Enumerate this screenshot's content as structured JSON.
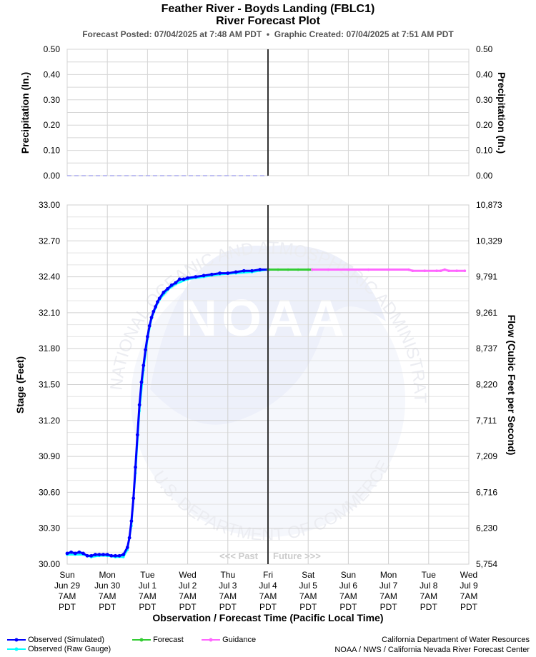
{
  "header": {
    "title": "Feather River - Boyds Landing (FBLC1)",
    "subtitle": "River Forecast Plot",
    "posted_label": "Forecast Posted: 07/04/2025 at 7:48 AM PDT",
    "separator": "•",
    "created_label": "Graphic Created: 07/04/2025 at 7:51 AM PDT"
  },
  "watermark": {
    "ring_top": "NATIONAL OCEANIC AND ATMOSPHERIC ADMINISTRATION",
    "ring_bottom": "U.S. DEPARTMENT OF COMMERCE",
    "logo": "NOAA"
  },
  "past_label": "<<< Past",
  "future_label": "Future >>>",
  "x_ticks": [
    [
      "Sun",
      "Jun 29",
      "7AM",
      "PDT"
    ],
    [
      "Mon",
      "Jun 30",
      "7AM",
      "PDT"
    ],
    [
      "Tue",
      "Jul 1",
      "7AM",
      "PDT"
    ],
    [
      "Wed",
      "Jul 2",
      "7AM",
      "PDT"
    ],
    [
      "Thu",
      "Jul 3",
      "7AM",
      "PDT"
    ],
    [
      "Fri",
      "Jul 4",
      "7AM",
      "PDT"
    ],
    [
      "Sat",
      "Jul 5",
      "7AM",
      "PDT"
    ],
    [
      "Sun",
      "Jul 6",
      "7AM",
      "PDT"
    ],
    [
      "Mon",
      "Jul 7",
      "7AM",
      "PDT"
    ],
    [
      "Tue",
      "Jul 8",
      "7AM",
      "PDT"
    ],
    [
      "Wed",
      "Jul 9",
      "7AM",
      "PDT"
    ]
  ],
  "legend": {
    "observed_simulated": "Observed (Simulated)",
    "observed_raw": "Observed (Raw Gauge)",
    "forecast": "Forecast",
    "guidance": "Guidance"
  },
  "credits": {
    "line1": "California Department of Water Resources",
    "line2": "NOAA / NWS / California Nevada River Forecast Center"
  },
  "colors": {
    "observed_simulated": "#0000ff",
    "observed_raw": "#00ffff",
    "forecast": "#33cc33",
    "guidance": "#ff66ff",
    "now_line": "#333333",
    "precip": "#aaaaee"
  },
  "chart_data": [
    {
      "type": "line",
      "panel": "precipitation",
      "ylabel_left": "Precipitation (In.)",
      "ylabel_right": "Precipitation (In.)",
      "ylim": [
        0,
        0.5
      ],
      "y_ticks": [
        "0.00",
        "0.10",
        "0.20",
        "0.30",
        "0.40",
        "0.50"
      ],
      "x_range_days": [
        0,
        10
      ],
      "series": [
        {
          "x": [
            0,
            5
          ],
          "values": [
            0,
            0
          ]
        }
      ]
    },
    {
      "type": "line",
      "panel": "stage",
      "xlabel": "Observation / Forecast Time (Pacific Local Time)",
      "ylabel_left": "Stage (Feet)",
      "ylabel_right": "Flow (Cubic Feet per Second)",
      "ylim": [
        30.0,
        33.0
      ],
      "y_ticks": [
        "30.00",
        "30.30",
        "30.60",
        "30.90",
        "31.20",
        "31.50",
        "31.80",
        "32.10",
        "32.40",
        "32.70",
        "33.00"
      ],
      "y_ticks_right": [
        "5,754",
        "6,230",
        "6,716",
        "7,209",
        "7,711",
        "8,220",
        "8,737",
        "9,261",
        "9,791",
        "10,329",
        "10,873"
      ],
      "x_range_days": [
        0,
        10
      ],
      "now_day": 5.0,
      "series": [
        {
          "name": "Observed (Simulated)",
          "x": [
            0.0,
            0.1,
            0.2,
            0.3,
            0.4,
            0.5,
            0.6,
            0.7,
            0.8,
            0.9,
            1.0,
            1.1,
            1.2,
            1.3,
            1.4,
            1.5,
            1.55,
            1.6,
            1.65,
            1.7,
            1.75,
            1.8,
            1.85,
            1.9,
            1.95,
            2.0,
            2.05,
            2.1,
            2.15,
            2.2,
            2.25,
            2.3,
            2.4,
            2.5,
            2.6,
            2.7,
            2.8,
            2.9,
            3.0,
            3.2,
            3.4,
            3.6,
            3.8,
            4.0,
            4.2,
            4.4,
            4.6,
            4.8,
            5.0
          ],
          "values": [
            30.09,
            30.1,
            30.09,
            30.1,
            30.09,
            30.07,
            30.07,
            30.08,
            30.08,
            30.08,
            30.08,
            30.07,
            30.07,
            30.07,
            30.08,
            30.14,
            30.22,
            30.36,
            30.55,
            30.81,
            31.08,
            31.33,
            31.52,
            31.66,
            31.79,
            31.9,
            31.99,
            32.06,
            32.11,
            32.15,
            32.19,
            32.22,
            32.27,
            32.3,
            32.33,
            32.35,
            32.38,
            32.38,
            32.39,
            32.4,
            32.41,
            32.42,
            32.43,
            32.43,
            32.44,
            32.45,
            32.45,
            32.46,
            32.46
          ]
        },
        {
          "name": "Observed (Raw Gauge)",
          "x": [
            0.0,
            0.2,
            0.4,
            0.6,
            0.8,
            1.0,
            1.2,
            1.4,
            1.5,
            1.6,
            1.7,
            1.8,
            1.9,
            2.0,
            2.1,
            2.2,
            2.3,
            2.5,
            2.7,
            3.0,
            3.4,
            3.8,
            4.2,
            4.6,
            5.0
          ],
          "values": [
            30.08,
            30.08,
            30.08,
            30.06,
            30.07,
            30.07,
            30.06,
            30.06,
            30.12,
            30.32,
            30.76,
            31.28,
            31.62,
            31.88,
            32.05,
            32.14,
            32.21,
            32.29,
            32.34,
            32.38,
            32.4,
            32.42,
            32.43,
            32.44,
            32.46
          ]
        },
        {
          "name": "Forecast",
          "x": [
            5.0,
            5.25,
            5.5,
            5.75,
            6.0,
            6.1
          ],
          "values": [
            32.46,
            32.46,
            32.46,
            32.46,
            32.46,
            32.46
          ]
        },
        {
          "name": "Guidance",
          "x": [
            6.1,
            6.5,
            7.0,
            7.5,
            8.0,
            8.5,
            8.6,
            8.9,
            9.2,
            9.3,
            9.4,
            9.5,
            9.7,
            9.9
          ],
          "values": [
            32.46,
            32.46,
            32.46,
            32.46,
            32.46,
            32.46,
            32.45,
            32.45,
            32.45,
            32.45,
            32.46,
            32.45,
            32.45,
            32.45
          ]
        }
      ]
    }
  ]
}
